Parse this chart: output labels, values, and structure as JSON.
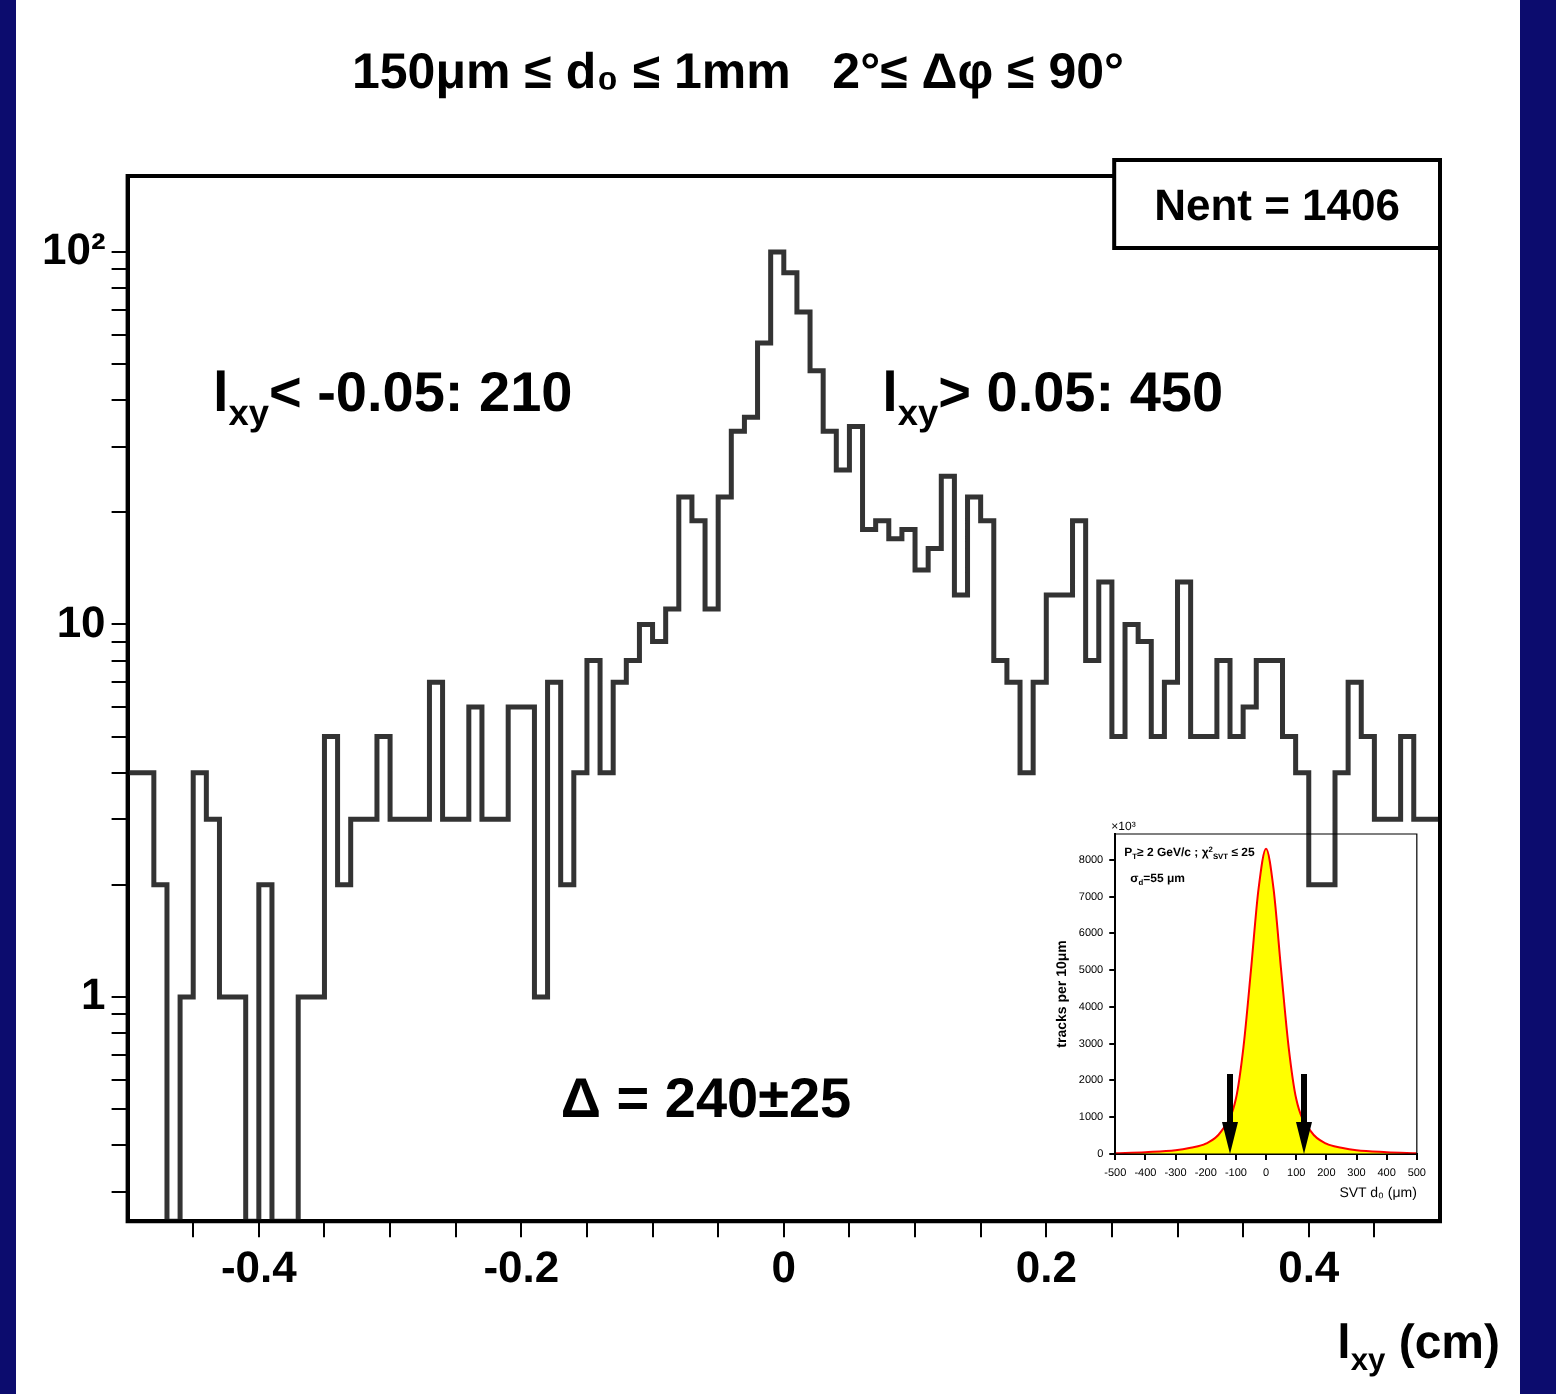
{
  "chart_data": [
    {
      "type": "histogram",
      "title": "150μm ≤ d₀ ≤ 1mm   2°≤ Δφ ≤ 90°",
      "xlabel": "l$_{xy}$ (cm)",
      "bins": [
        -0.5,
        -0.49,
        -0.48,
        -0.47,
        -0.46,
        -0.45,
        -0.44,
        -0.43,
        -0.42,
        -0.41,
        -0.4,
        -0.39,
        -0.38,
        -0.37,
        -0.36,
        -0.35,
        -0.34,
        -0.33,
        -0.32,
        -0.31,
        -0.3,
        -0.29,
        -0.28,
        -0.27,
        -0.26,
        -0.25,
        -0.24,
        -0.23,
        -0.22,
        -0.21,
        -0.2,
        -0.19,
        -0.18,
        -0.17,
        -0.16,
        -0.15,
        -0.14,
        -0.13,
        -0.12,
        -0.11,
        -0.1,
        -0.09,
        -0.08,
        -0.07,
        -0.06,
        -0.05,
        -0.04,
        -0.03,
        -0.02,
        -0.01,
        0,
        0.01,
        0.02,
        0.03,
        0.04,
        0.05,
        0.06,
        0.07,
        0.08,
        0.09,
        0.1,
        0.11,
        0.12,
        0.13,
        0.14,
        0.15,
        0.16,
        0.17,
        0.18,
        0.19,
        0.2,
        0.21,
        0.22,
        0.23,
        0.24,
        0.25,
        0.26,
        0.27,
        0.28,
        0.29,
        0.3,
        0.31,
        0.32,
        0.33,
        0.34,
        0.35,
        0.36,
        0.37,
        0.38,
        0.39,
        0.4,
        0.41,
        0.42,
        0.43,
        0.44,
        0.45,
        0.46,
        0.47,
        0.48,
        0.49,
        0.5
      ],
      "values": [
        4,
        4,
        2,
        null,
        1,
        4,
        3,
        1,
        1,
        null,
        2,
        null,
        null,
        1,
        1,
        5,
        2,
        3,
        3,
        5,
        3,
        3,
        3,
        7,
        3,
        3,
        6,
        3,
        3,
        6,
        6,
        1,
        7,
        2,
        4,
        8,
        4,
        7,
        8,
        10,
        9,
        11,
        22,
        19,
        11,
        22,
        33,
        36,
        57,
        100,
        88,
        69,
        48,
        33,
        26,
        34,
        18,
        19,
        17,
        18,
        14,
        16,
        25,
        12,
        22,
        19,
        8,
        7,
        4,
        7,
        12,
        12,
        19,
        8,
        13,
        5,
        10,
        9,
        5,
        7,
        13,
        5,
        5,
        8,
        5,
        6,
        8,
        8,
        5,
        4,
        2,
        2,
        4,
        7,
        5,
        3,
        3,
        5,
        3,
        3
      ],
      "color": "#333333",
      "xlim": [
        -0.5,
        0.5
      ],
      "xticks": [
        {
          "value": -0.45,
          "label": null
        },
        -0.4,
        {
          "value": -0.35,
          "label": null
        },
        {
          "value": -0.3,
          "label": null
        },
        {
          "value": -0.25,
          "label": null
        },
        -0.2,
        {
          "value": -0.15,
          "label": null
        },
        {
          "value": -0.1,
          "label": null
        },
        {
          "value": -0.05,
          "label": null
        },
        0,
        {
          "value": 0.05,
          "label": null
        },
        {
          "value": 0.1,
          "label": null
        },
        {
          "value": 0.15,
          "label": null
        },
        0.2,
        {
          "value": 0.25,
          "label": null
        },
        {
          "value": 0.3,
          "label": null
        },
        {
          "value": 0.35,
          "label": null
        },
        0.4,
        {
          "value": 0.45,
          "label": null
        }
      ],
      "ylim": [
        0.25,
        160
      ],
      "yticks": [
        {
          "value": 0.3,
          "label": null
        },
        {
          "value": 0.4,
          "label": null
        },
        {
          "value": 0.5,
          "label": null
        },
        {
          "value": 0.6,
          "label": null
        },
        {
          "value": 0.7,
          "label": null
        },
        {
          "value": 0.8,
          "label": null
        },
        {
          "value": 0.9,
          "label": null
        },
        1,
        {
          "value": 2,
          "label": null
        },
        {
          "value": 3,
          "label": null
        },
        {
          "value": 4,
          "label": null
        },
        {
          "value": 5,
          "label": null
        },
        {
          "value": 6,
          "label": null
        },
        {
          "value": 7,
          "label": null
        },
        {
          "value": 8,
          "label": null
        },
        {
          "value": 9,
          "label": null
        },
        10,
        {
          "value": 20,
          "label": null
        },
        {
          "value": 30,
          "label": null
        },
        {
          "value": 40,
          "label": null
        },
        {
          "value": 50,
          "label": null
        },
        {
          "value": 60,
          "label": null
        },
        {
          "value": 70,
          "label": null
        },
        {
          "value": 80,
          "label": null
        },
        {
          "value": 90,
          "label": null
        },
        {
          "value": 100,
          "label": "10²"
        }
      ],
      "log": "y",
      "grid": false,
      "legend": false,
      "annotations": [
        "Nent = 1406",
        "l$_{xy}$< -0.05: 210",
        "l$_{xy}$> 0.05: 450",
        "Δ = 240±25"
      ]
    },
    {
      "type": "area",
      "ylabel": "tracks per 10μm",
      "xlabel": "SVT d₀ (μm)",
      "x": [
        -500,
        -400,
        -300,
        -250,
        -200,
        -150,
        -100,
        -75,
        -50,
        -25,
        0,
        25,
        50,
        75,
        100,
        150,
        200,
        250,
        300,
        400,
        500
      ],
      "values": [
        20,
        50,
        100,
        170,
        280,
        600,
        1500,
        2900,
        5000,
        7200,
        8300,
        7200,
        5000,
        2900,
        1500,
        600,
        280,
        170,
        100,
        50,
        20
      ],
      "color": "#ffff00",
      "xlim": [
        -500,
        500
      ],
      "xticks": [
        -500,
        -400,
        -300,
        -200,
        -100,
        0,
        100,
        200,
        300,
        400,
        500
      ],
      "ylim": [
        0,
        8700
      ],
      "yticks": [
        0,
        1000,
        2000,
        3000,
        4000,
        5000,
        6000,
        7000,
        8000
      ],
      "grid": false,
      "legend": false,
      "annotations": [
        "×10³",
        "P$_{T}$≥ 2 GeV/c ; χ$^{2}$$_{SVT}$ ≤ 25",
        "σ$_{d}$=55 μm"
      ]
    }
  ]
}
